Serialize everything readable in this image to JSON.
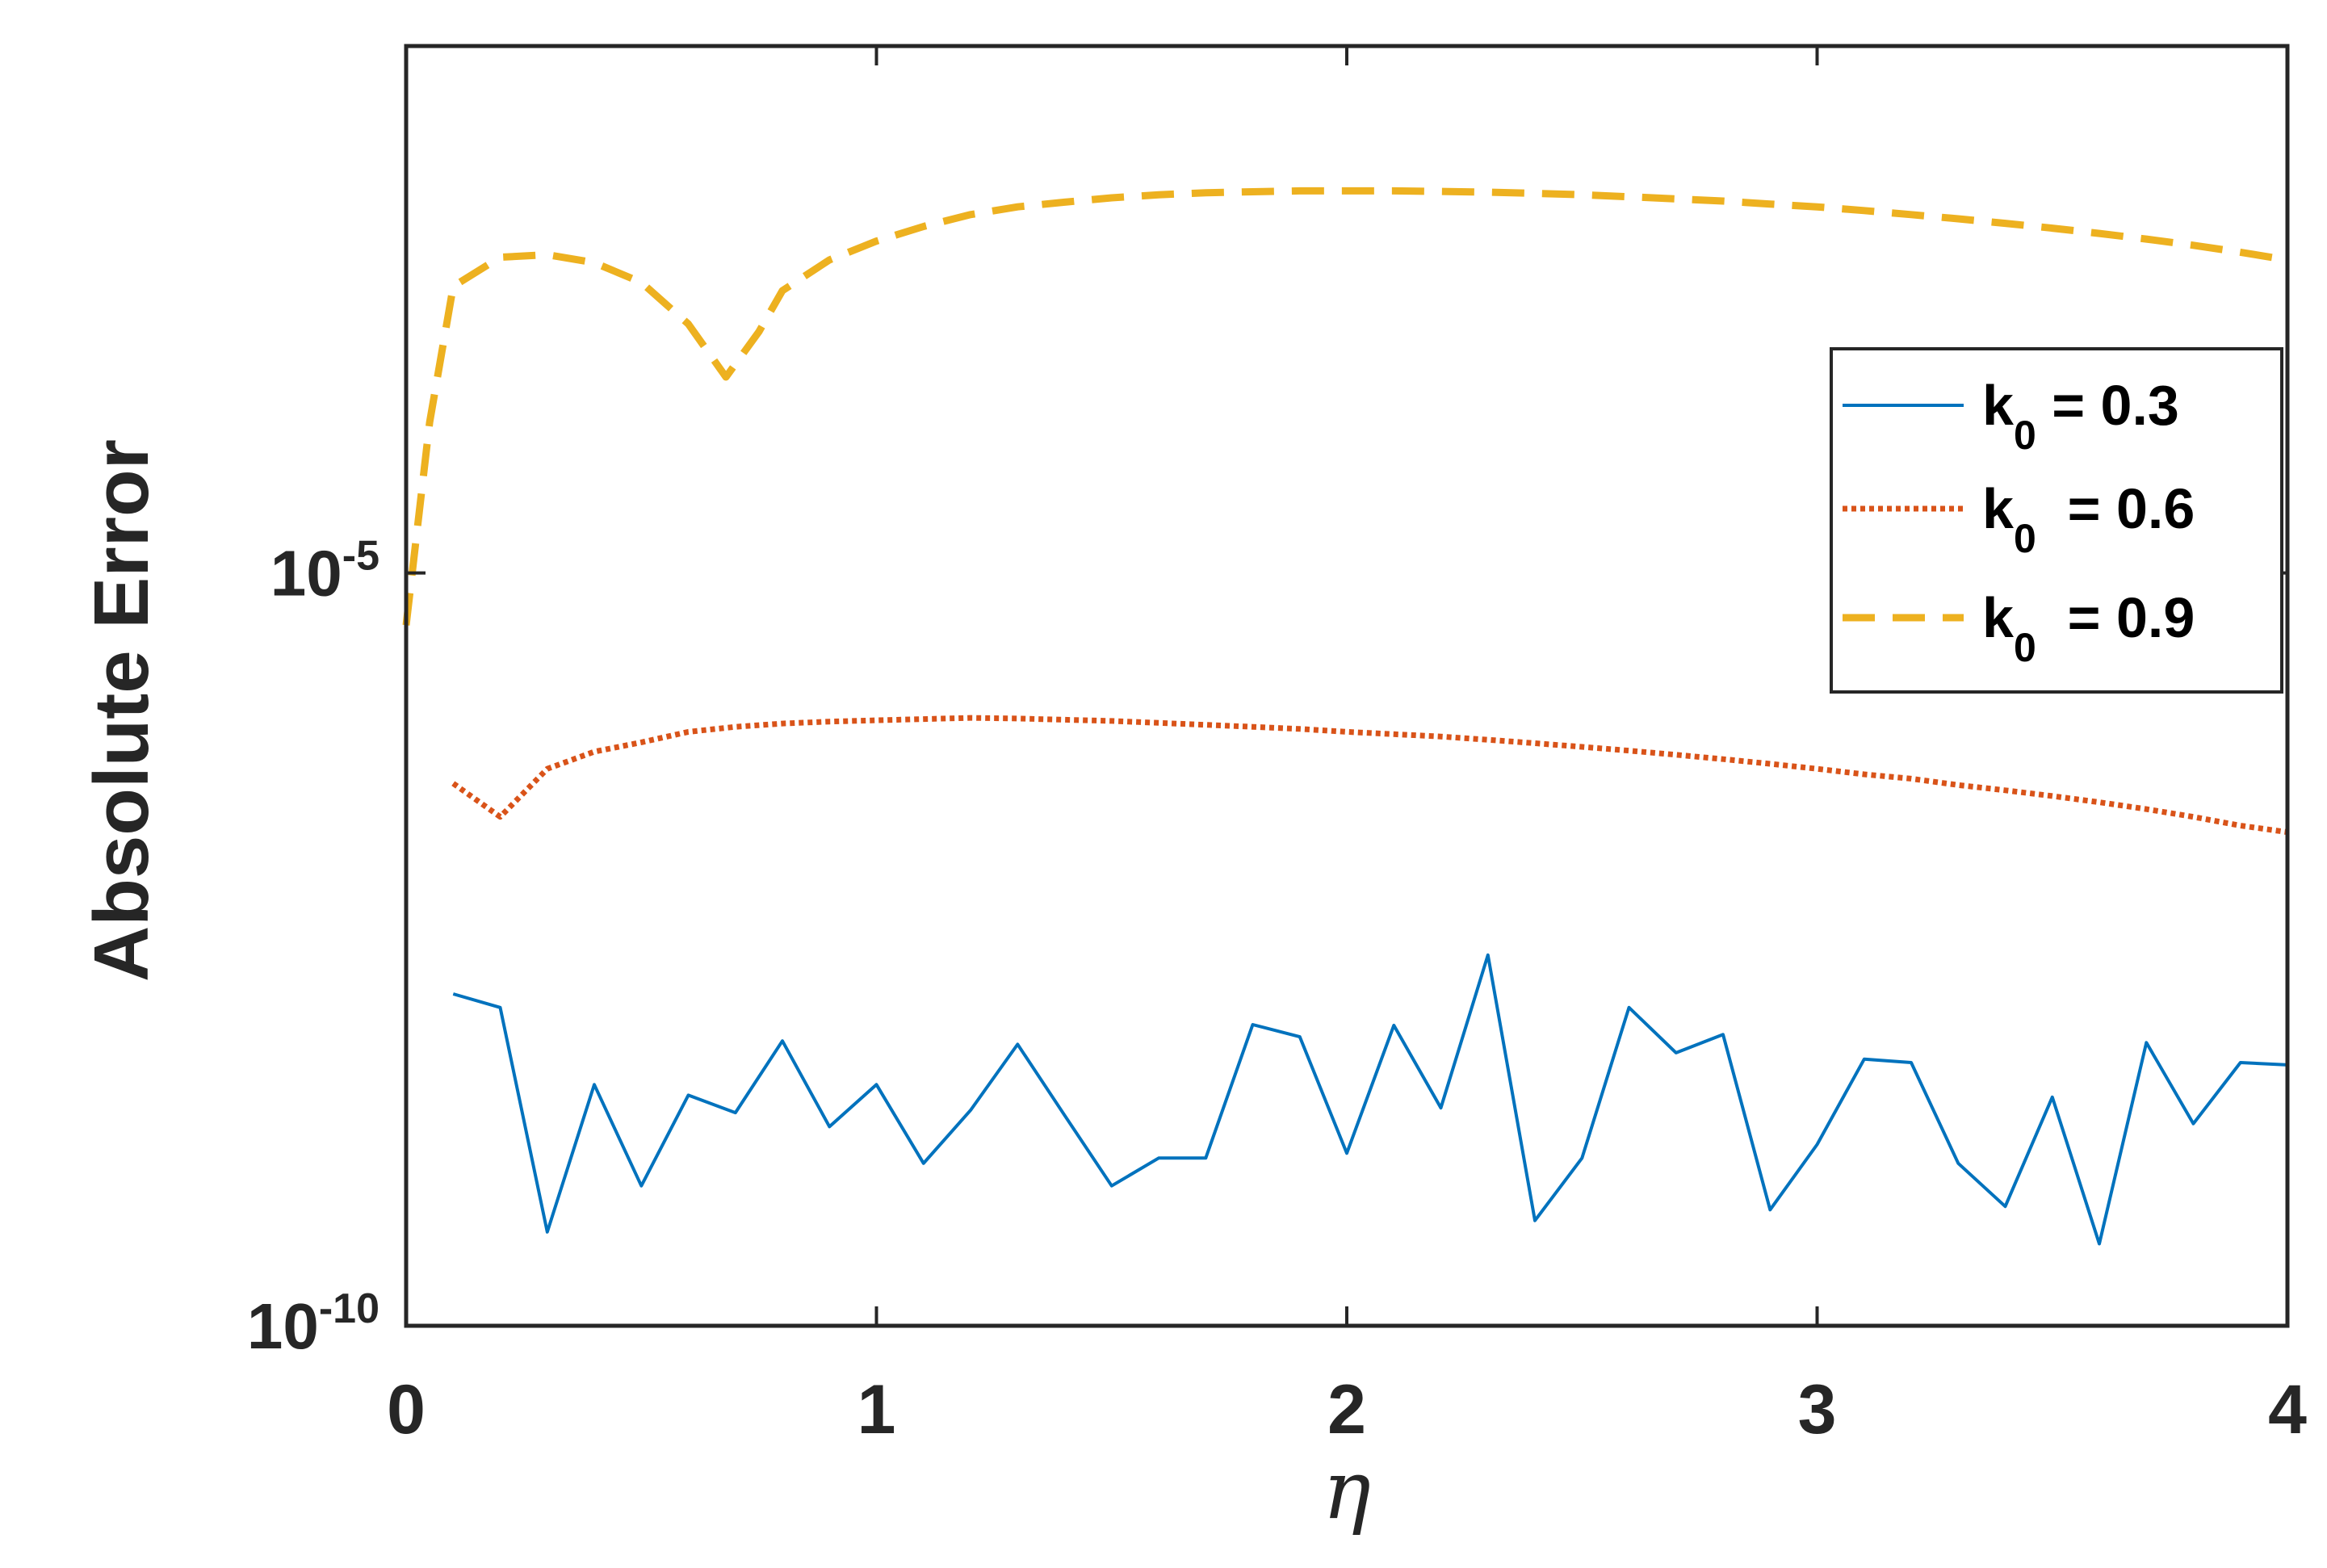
{
  "chart_data": {
    "type": "line",
    "xlabel": "η",
    "ylabel": "Absolute Error",
    "xlim": [
      0,
      4
    ],
    "ylim": [
      1e-10,
      0.0316
    ],
    "yscale": "log",
    "grid": false,
    "legend_position": "right",
    "x_ticks": [
      {
        "value": 0,
        "label": "0"
      },
      {
        "value": 1,
        "label": "1"
      },
      {
        "value": 2,
        "label": "2"
      },
      {
        "value": 3,
        "label": "3"
      },
      {
        "value": 4,
        "label": "4"
      }
    ],
    "y_ticks": [
      {
        "value": 1e-10,
        "base": "10",
        "exp": "-10"
      },
      {
        "value": 1e-05,
        "base": "10",
        "exp": "-5"
      }
    ],
    "series": [
      {
        "name": "k0 = 0.3",
        "legend": {
          "main": "k",
          "sub": "0",
          "rest": " = 0.3"
        },
        "color": "#0072BD",
        "style": "solid",
        "x": [
          0.1,
          0.2,
          0.3,
          0.4,
          0.5,
          0.6,
          0.7,
          0.8,
          0.9,
          1.0,
          1.1,
          1.2,
          1.3,
          1.4,
          1.5,
          1.6,
          1.7,
          1.8,
          1.9,
          2.0,
          2.1,
          2.2,
          2.3,
          2.4,
          2.5,
          2.6,
          2.7,
          2.8,
          2.9,
          3.0,
          3.1,
          3.2,
          3.3,
          3.4,
          3.5,
          3.6,
          3.7,
          3.8,
          3.9,
          4.0
        ],
        "y": [
          1.6e-08,
          1.3e-08,
          4.2e-10,
          4e-09,
          8.5e-10,
          3.4e-09,
          2.6e-09,
          7.8e-09,
          2.1e-09,
          4e-09,
          1.2e-09,
          2.7e-09,
          7.4e-09,
          2.5e-09,
          8.5e-10,
          1.3e-09,
          1.3e-09,
          1e-08,
          8.3e-09,
          1.4e-09,
          9.9e-09,
          2.8e-09,
          2.9e-08,
          5e-10,
          1.3e-09,
          1.3e-08,
          6.5e-09,
          8.6e-09,
          5.9e-10,
          1.6e-09,
          5.9e-09,
          5.6e-09,
          1.2e-09,
          6.2e-10,
          3.3e-09,
          3.5e-10,
          7.6e-09,
          2.2e-09,
          5.6e-09,
          5.4e-09
        ]
      },
      {
        "name": "k0 = 0.6",
        "legend": {
          "main": "k",
          "sub": "0",
          "rest": "  = 0.6"
        },
        "color": "#D95319",
        "style": "dotted",
        "x": [
          0.1,
          0.2,
          0.3,
          0.4,
          0.5,
          0.6,
          0.7,
          0.8,
          0.9,
          1.0,
          1.1,
          1.2,
          1.3,
          1.4,
          1.5,
          1.6,
          1.7,
          1.8,
          1.9,
          2.0,
          2.1,
          2.2,
          2.3,
          2.4,
          2.5,
          2.6,
          2.7,
          2.8,
          2.9,
          3.0,
          3.1,
          3.2,
          3.3,
          3.4,
          3.5,
          3.6,
          3.7,
          3.8,
          3.9,
          4.0
        ],
        "y": [
          4e-07,
          2.4e-07,
          5e-07,
          6.5e-07,
          7.5e-07,
          8.8e-07,
          9.5e-07,
          1e-06,
          1.03e-06,
          1.05e-06,
          1.07e-06,
          1.09e-06,
          1.08e-06,
          1.06e-06,
          1.04e-06,
          1.01e-06,
          9.8e-07,
          9.5e-07,
          9.2e-07,
          8.8e-07,
          8.5e-07,
          8.2e-07,
          7.8e-07,
          7.4e-07,
          7e-07,
          6.6e-07,
          6.2e-07,
          5.8e-07,
          5.4e-07,
          5e-07,
          4.6e-07,
          4.3e-07,
          3.9e-07,
          3.6e-07,
          3.3e-07,
          3e-07,
          2.7e-07,
          2.4e-07,
          2.1e-07,
          1.9e-07
        ]
      },
      {
        "name": "k0 = 0.9",
        "legend": {
          "main": "k",
          "sub": "0",
          "rest": "  = 0.9"
        },
        "color": "#EDB120",
        "style": "dashed",
        "x": [
          0.0,
          0.05,
          0.1,
          0.2,
          0.3,
          0.4,
          0.5,
          0.6,
          0.68,
          0.75,
          0.8,
          0.9,
          1.0,
          1.1,
          1.2,
          1.3,
          1.4,
          1.5,
          1.6,
          1.7,
          1.8,
          1.9,
          2.0,
          2.1,
          2.2,
          2.3,
          2.4,
          2.5,
          2.6,
          2.7,
          2.8,
          2.9,
          3.0,
          3.1,
          3.2,
          3.3,
          3.4,
          3.5,
          3.6,
          3.7,
          3.8,
          3.9,
          4.0
        ],
        "y": [
          4.5e-06,
          0.0001,
          0.0008,
          0.00125,
          0.0013,
          0.00115,
          0.00085,
          0.00045,
          0.0002,
          0.0004,
          0.00075,
          0.0012,
          0.0016,
          0.002,
          0.0024,
          0.0027,
          0.0029,
          0.0031,
          0.00325,
          0.00335,
          0.0034,
          0.00345,
          0.00345,
          0.00345,
          0.00342,
          0.00338,
          0.00332,
          0.00325,
          0.00315,
          0.00305,
          0.00295,
          0.00282,
          0.0027,
          0.00255,
          0.0024,
          0.00225,
          0.0021,
          0.00195,
          0.0018,
          0.00165,
          0.0015,
          0.00135,
          0.0012
        ]
      }
    ]
  }
}
